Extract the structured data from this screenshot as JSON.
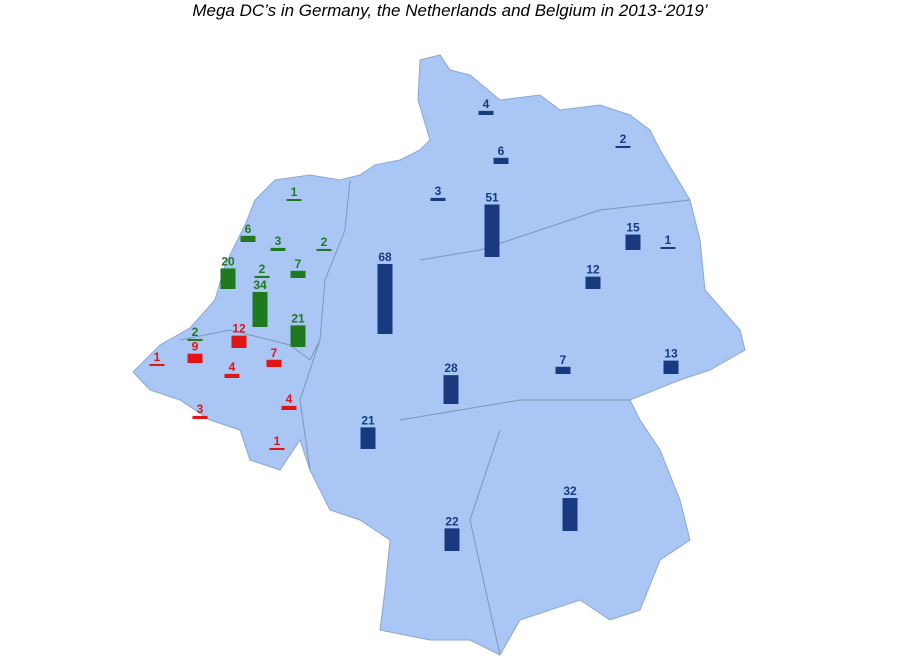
{
  "title": "Mega DC’s in Germany, the Netherlands and Belgium in 2013-‘2019’",
  "map": {
    "groups": [
      {
        "color": "#1a3a80",
        "values": [
          4,
          6,
          2,
          3,
          51,
          68,
          15,
          1,
          12,
          13,
          7,
          28,
          21,
          32,
          22
        ]
      },
      {
        "color": "#1f7a1f",
        "values": [
          1,
          6,
          3,
          2,
          7,
          20,
          2,
          34,
          21,
          2
        ]
      },
      {
        "color": "#e01515",
        "values": [
          1,
          9,
          12,
          7,
          4,
          4,
          3,
          1
        ]
      }
    ]
  }
}
